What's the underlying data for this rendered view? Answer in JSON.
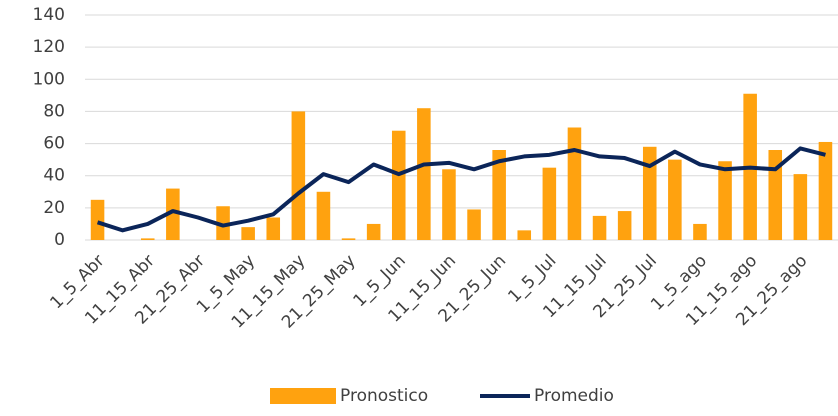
{
  "chart_data": {
    "type": "bar",
    "categories": [
      "1_5_Abr",
      null,
      "11_15_Abr",
      null,
      "21_25_Abr",
      null,
      "1_5_May",
      null,
      "11_15_May",
      null,
      "21_25_May",
      null,
      "1_5_Jun",
      null,
      "11_15_Jun",
      null,
      "21_25_Jun",
      null,
      "1_5_Jul",
      null,
      "11_15_Jul",
      null,
      "21_25_Jul",
      null,
      "1_5_ago",
      null,
      "11_15_ago",
      null,
      "21_25_ago",
      null
    ],
    "series": [
      {
        "name": "Pronostico",
        "type": "bar",
        "color": "#ffa20f",
        "values": [
          25,
          0,
          1,
          32,
          0,
          21,
          8,
          14,
          80,
          30,
          1,
          10,
          68,
          82,
          44,
          19,
          56,
          6,
          45,
          70,
          15,
          18,
          58,
          50,
          10,
          49,
          91,
          56,
          41,
          61
        ]
      },
      {
        "name": "Promedio",
        "type": "line",
        "color": "#0b2559",
        "values": [
          11,
          6,
          10,
          18,
          14,
          9,
          12,
          16,
          29,
          41,
          36,
          47,
          41,
          47,
          48,
          44,
          49,
          52,
          53,
          56,
          52,
          51,
          46,
          55,
          47,
          44,
          45,
          44,
          57,
          53
        ]
      }
    ],
    "ylim": [
      0,
      140
    ],
    "yticks": [
      0,
      20,
      40,
      60,
      80,
      100,
      120,
      140
    ],
    "grid": true,
    "legend": "bottom"
  }
}
